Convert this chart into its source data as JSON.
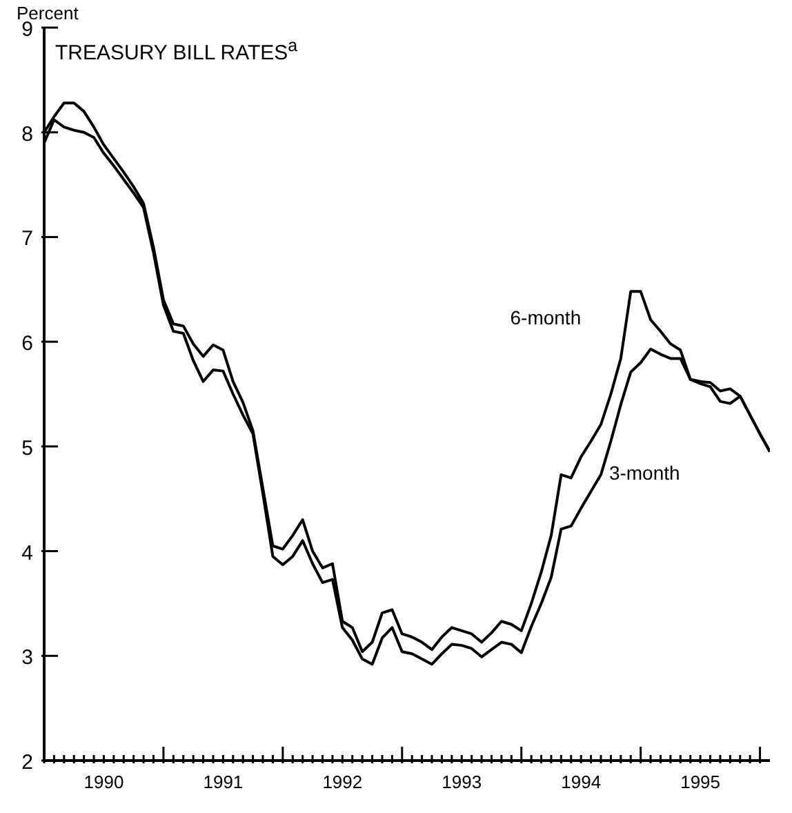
{
  "chart_data": {
    "type": "line",
    "title": "TREASURY BILL RATES$^{a}$",
    "ylabel": "Percent",
    "x": [
      "1990-01",
      "1990-02",
      "1990-03",
      "1990-04",
      "1990-05",
      "1990-06",
      "1990-07",
      "1990-08",
      "1990-09",
      "1990-10",
      "1990-11",
      "1990-12",
      "1991-01",
      "1991-02",
      "1991-03",
      "1991-04",
      "1991-05",
      "1991-06",
      "1991-07",
      "1991-08",
      "1991-09",
      "1991-10",
      "1991-11",
      "1991-12",
      "1992-01",
      "1992-02",
      "1992-03",
      "1992-04",
      "1992-05",
      "1992-06",
      "1992-07",
      "1992-08",
      "1992-09",
      "1992-10",
      "1992-11",
      "1992-12",
      "1993-01",
      "1993-02",
      "1993-03",
      "1993-04",
      "1993-05",
      "1993-06",
      "1993-07",
      "1993-08",
      "1993-09",
      "1993-10",
      "1993-11",
      "1993-12",
      "1994-01",
      "1994-02",
      "1994-03",
      "1994-04",
      "1994-05",
      "1994-06",
      "1994-07",
      "1994-08",
      "1994-09",
      "1994-10",
      "1994-11",
      "1994-12",
      "1995-01",
      "1995-02",
      "1995-03",
      "1995-04",
      "1995-05",
      "1995-06",
      "1995-07",
      "1995-08",
      "1995-09",
      "1995-10",
      "1995-11",
      "1995-12",
      "1996-01",
      "1996-02"
    ],
    "series": [
      {
        "name": "6-month",
        "color": "#000000",
        "values": [
          8.0,
          8.15,
          8.28,
          8.28,
          8.2,
          8.05,
          7.88,
          7.75,
          7.62,
          7.48,
          7.32,
          6.9,
          6.4,
          6.17,
          6.15,
          5.98,
          5.86,
          5.97,
          5.92,
          5.62,
          5.42,
          5.15,
          4.6,
          4.05,
          4.02,
          4.15,
          4.3,
          4.0,
          3.84,
          3.88,
          3.33,
          3.27,
          3.04,
          3.13,
          3.41,
          3.44,
          3.21,
          3.18,
          3.13,
          3.06,
          3.18,
          3.27,
          3.24,
          3.21,
          3.13,
          3.22,
          3.33,
          3.3,
          3.24,
          3.5,
          3.8,
          4.15,
          4.73,
          4.7,
          4.9,
          5.05,
          5.21,
          5.5,
          5.84,
          6.48,
          6.48,
          6.21,
          6.1,
          5.98,
          5.92,
          5.64,
          5.62,
          5.61,
          5.53,
          5.55,
          5.48,
          5.3,
          5.12,
          4.95
        ]
      },
      {
        "name": "3-month",
        "color": "#000000",
        "values": [
          7.9,
          8.12,
          8.05,
          8.02,
          8.0,
          7.95,
          7.8,
          7.68,
          7.55,
          7.42,
          7.28,
          6.85,
          6.35,
          6.1,
          6.08,
          5.82,
          5.62,
          5.73,
          5.72,
          5.5,
          5.3,
          5.12,
          4.55,
          3.95,
          3.87,
          3.95,
          4.1,
          3.88,
          3.7,
          3.73,
          3.27,
          3.15,
          2.97,
          2.92,
          3.17,
          3.27,
          3.04,
          3.02,
          2.97,
          2.92,
          3.02,
          3.11,
          3.1,
          3.07,
          2.99,
          3.06,
          3.13,
          3.11,
          3.03,
          3.28,
          3.5,
          3.75,
          4.21,
          4.24,
          4.41,
          4.57,
          4.73,
          5.05,
          5.4,
          5.71,
          5.8,
          5.93,
          5.88,
          5.84,
          5.84,
          5.64,
          5.6,
          5.57,
          5.43,
          5.41,
          5.48,
          5.3,
          5.12,
          4.95
        ]
      }
    ],
    "xlim": [
      "1990-01",
      "1996-02"
    ],
    "xticks": [
      {
        "value": "1990-01",
        "label": null
      },
      {
        "value": "1990-02",
        "label": null
      },
      {
        "value": "1990-03",
        "label": null
      },
      {
        "value": "1990-04",
        "label": null
      },
      {
        "value": "1990-05",
        "label": null
      },
      {
        "value": "1990-06",
        "label": null
      },
      {
        "value": "1990-07",
        "label": "1990"
      },
      {
        "value": "1990-08",
        "label": null
      },
      {
        "value": "1990-09",
        "label": null
      },
      {
        "value": "1990-10",
        "label": null
      },
      {
        "value": "1990-11",
        "label": null
      },
      {
        "value": "1990-12",
        "label": null
      },
      {
        "value": "1991-01",
        "label": null
      },
      {
        "value": "1991-02",
        "label": null
      },
      {
        "value": "1991-03",
        "label": null
      },
      {
        "value": "1991-04",
        "label": null
      },
      {
        "value": "1991-05",
        "label": null
      },
      {
        "value": "1991-06",
        "label": null
      },
      {
        "value": "1991-07",
        "label": "1991"
      },
      {
        "value": "1991-08",
        "label": null
      },
      {
        "value": "1991-09",
        "label": null
      },
      {
        "value": "1991-10",
        "label": null
      },
      {
        "value": "1991-11",
        "label": null
      },
      {
        "value": "1991-12",
        "label": null
      },
      {
        "value": "1992-01",
        "label": null
      },
      {
        "value": "1992-02",
        "label": null
      },
      {
        "value": "1992-03",
        "label": null
      },
      {
        "value": "1992-04",
        "label": null
      },
      {
        "value": "1992-05",
        "label": null
      },
      {
        "value": "1992-06",
        "label": null
      },
      {
        "value": "1992-07",
        "label": "1992"
      },
      {
        "value": "1992-08",
        "label": null
      },
      {
        "value": "1992-09",
        "label": null
      },
      {
        "value": "1992-10",
        "label": null
      },
      {
        "value": "1992-11",
        "label": null
      },
      {
        "value": "1992-12",
        "label": null
      },
      {
        "value": "1993-01",
        "label": null
      },
      {
        "value": "1993-02",
        "label": null
      },
      {
        "value": "1993-03",
        "label": null
      },
      {
        "value": "1993-04",
        "label": null
      },
      {
        "value": "1993-05",
        "label": null
      },
      {
        "value": "1993-06",
        "label": null
      },
      {
        "value": "1993-07",
        "label": "1993"
      },
      {
        "value": "1993-08",
        "label": null
      },
      {
        "value": "1993-09",
        "label": null
      },
      {
        "value": "1993-10",
        "label": null
      },
      {
        "value": "1993-11",
        "label": null
      },
      {
        "value": "1993-12",
        "label": null
      },
      {
        "value": "1994-01",
        "label": null
      },
      {
        "value": "1994-02",
        "label": null
      },
      {
        "value": "1994-03",
        "label": null
      },
      {
        "value": "1994-04",
        "label": null
      },
      {
        "value": "1994-05",
        "label": null
      },
      {
        "value": "1994-06",
        "label": null
      },
      {
        "value": "1994-07",
        "label": "1994"
      },
      {
        "value": "1994-08",
        "label": null
      },
      {
        "value": "1994-09",
        "label": null
      },
      {
        "value": "1994-10",
        "label": null
      },
      {
        "value": "1994-11",
        "label": null
      },
      {
        "value": "1994-12",
        "label": null
      },
      {
        "value": "1995-01",
        "label": null
      },
      {
        "value": "1995-02",
        "label": null
      },
      {
        "value": "1995-03",
        "label": null
      },
      {
        "value": "1995-04",
        "label": null
      },
      {
        "value": "1995-05",
        "label": null
      },
      {
        "value": "1995-06",
        "label": null
      },
      {
        "value": "1995-07",
        "label": "1995"
      },
      {
        "value": "1995-08",
        "label": null
      },
      {
        "value": "1995-09",
        "label": null
      },
      {
        "value": "1995-10",
        "label": null
      },
      {
        "value": "1995-11",
        "label": null
      },
      {
        "value": "1995-12",
        "label": null
      },
      {
        "value": "1996-01",
        "label": null
      }
    ],
    "ylim": [
      2,
      9
    ],
    "yticks": [
      2,
      3,
      4,
      5,
      6,
      7,
      8,
      9
    ]
  }
}
